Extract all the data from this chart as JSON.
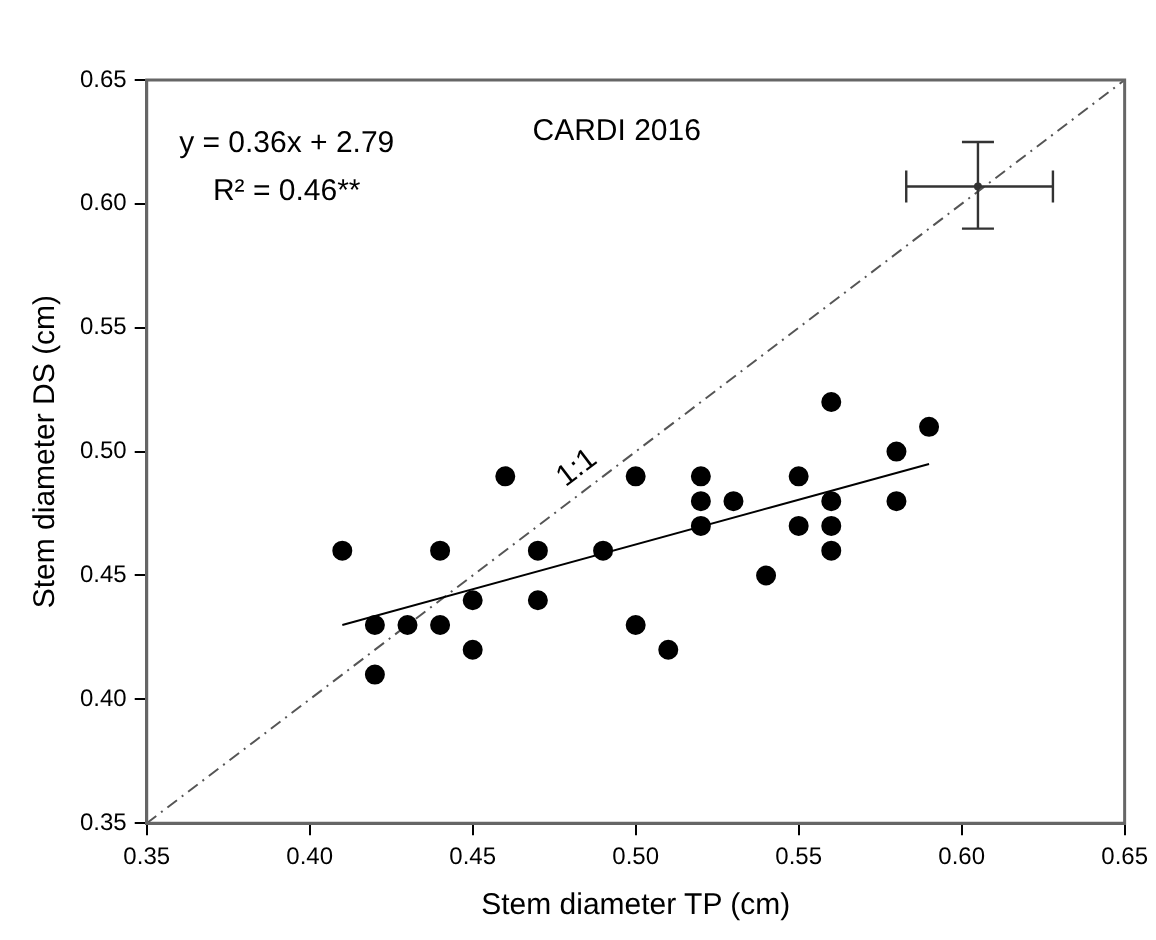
{
  "chart_data": {
    "type": "scatter",
    "xlabel": "Stem diameter TP (cm)",
    "ylabel": "Stem diameter DS (cm)",
    "xlim": [
      0.35,
      0.65
    ],
    "ylim": [
      0.35,
      0.65
    ],
    "xticks": [
      0.35,
      {
        "value": 0.4,
        "label": "0.40"
      },
      0.45,
      {
        "value": 0.5,
        "label": "0.50"
      },
      0.55,
      {
        "value": 0.6,
        "label": "0.60"
      },
      0.65
    ],
    "yticks": [
      0.35,
      {
        "value": 0.4,
        "label": "0.40"
      },
      0.45,
      {
        "value": 0.5,
        "label": "0.50"
      },
      0.55,
      {
        "value": 0.6,
        "label": "0.60"
      },
      0.65
    ],
    "grid": false,
    "legend": false,
    "marker": "circle",
    "series": [
      {
        "type": "scatter",
        "color": "#000000",
        "x": [
          0.41,
          0.42,
          0.42,
          0.43,
          0.44,
          0.44,
          0.45,
          0.45,
          0.46,
          0.47,
          0.47,
          0.49,
          0.5,
          0.5,
          0.51,
          0.52,
          0.52,
          0.52,
          0.53,
          0.54,
          0.55,
          0.55,
          0.56,
          0.56,
          0.56,
          0.56,
          0.58,
          0.58,
          0.59
        ],
        "values": [
          0.46,
          0.43,
          0.41,
          0.43,
          0.46,
          0.43,
          0.44,
          0.42,
          0.49,
          0.46,
          0.44,
          0.46,
          0.49,
          0.43,
          0.42,
          0.49,
          0.48,
          0.47,
          0.48,
          0.45,
          0.49,
          0.47,
          0.52,
          0.48,
          0.47,
          0.46,
          0.5,
          0.48,
          0.51
        ]
      },
      {
        "type": "line",
        "color": "#000000",
        "line_style": "solid",
        "marker": "none",
        "x": [
          0.41,
          0.59
        ],
        "values": [
          0.43,
          0.495
        ]
      },
      {
        "type": "line",
        "color": "#555555",
        "line_style": "dashed",
        "marker": "none",
        "x": [
          0.35,
          0.65
        ],
        "values": [
          0.35,
          0.65
        ]
      },
      {
        "type": "scatter",
        "color": "#333333",
        "x": [
          0.605
        ],
        "values": [
          0.607
        ],
        "errors": [
          [
            0.59,
            0.625
          ]
        ],
        "xerrors": [
          [
            0.583,
            0.628
          ]
        ]
      }
    ],
    "annotations": [
      "y = 0.36x + 2.79",
      "R² = 0.46**",
      "CARDI 2016",
      "1:1"
    ]
  }
}
